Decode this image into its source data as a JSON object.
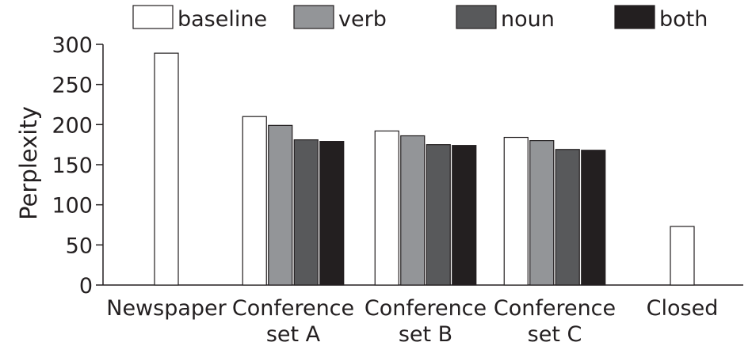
{
  "chart_data": {
    "type": "bar",
    "title": "",
    "xlabel": "",
    "ylabel": "Perplexity",
    "ylim": [
      0,
      300
    ],
    "yticks": [
      0,
      50,
      100,
      150,
      200,
      250,
      300
    ],
    "categories": [
      [
        "Newspaper"
      ],
      [
        "Conference",
        "set A"
      ],
      [
        "Conference",
        "set B"
      ],
      [
        "Conference",
        "set C"
      ],
      [
        "Closed"
      ]
    ],
    "series": [
      {
        "name": "baseline",
        "color": "#ffffff",
        "values": [
          289,
          210,
          192,
          184,
          73
        ]
      },
      {
        "name": "verb",
        "color": "#939598",
        "values": [
          null,
          199,
          186,
          180,
          null
        ]
      },
      {
        "name": "noun",
        "color": "#58595b",
        "values": [
          null,
          181,
          175,
          169,
          null
        ]
      },
      {
        "name": "both",
        "color": "#231f20",
        "values": [
          null,
          179,
          174,
          168,
          null
        ]
      }
    ],
    "legend_position": "top"
  }
}
